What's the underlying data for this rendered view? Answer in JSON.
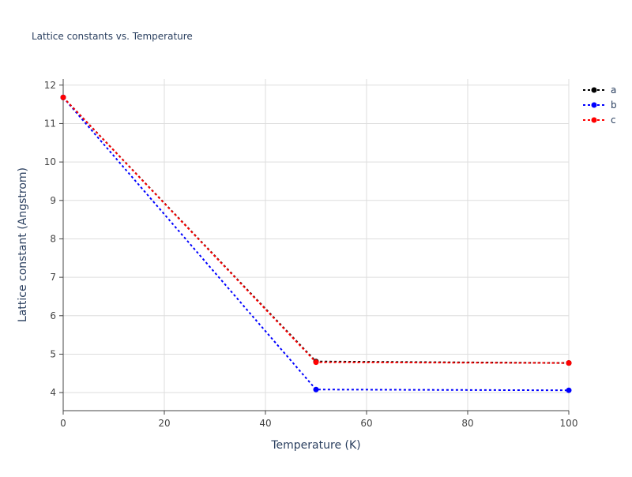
{
  "chart_data": {
    "type": "line",
    "title": "Lattice constants vs. Temperature",
    "x_label": "Temperature (K)",
    "y_label": "Lattice constant (Angstrom)",
    "x": [
      0,
      50,
      100
    ],
    "series": [
      {
        "name": "a",
        "color": "#000000",
        "values": [
          11.68,
          4.81,
          4.77
        ]
      },
      {
        "name": "b",
        "color": "#0000ff",
        "values": [
          11.68,
          4.08,
          4.06
        ]
      },
      {
        "name": "c",
        "color": "#ff0000",
        "values": [
          11.68,
          4.79,
          4.77
        ]
      }
    ],
    "xlim": [
      0,
      100
    ],
    "xticks": [
      0,
      20,
      40,
      60,
      80,
      100
    ],
    "ylim": [
      3.53,
      12.16
    ],
    "yticks": [
      4,
      5,
      6,
      7,
      8,
      9,
      10,
      11,
      12
    ],
    "grid": true,
    "legend": "top-right"
  }
}
